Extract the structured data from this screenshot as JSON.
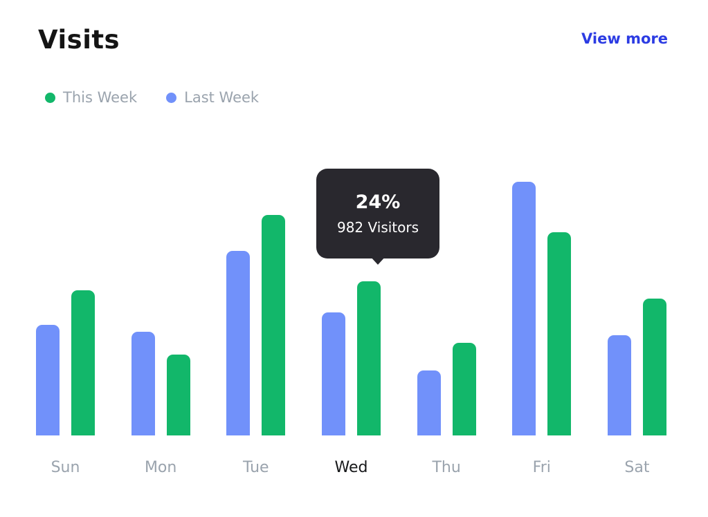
{
  "header": {
    "title": "Visits",
    "view_more_label": "View more"
  },
  "legend": [
    {
      "label": "This Week",
      "color": "#12b76a"
    },
    {
      "label": "Last Week",
      "color": "#7191fa"
    }
  ],
  "tooltip": {
    "percent": "24%",
    "visitors": "982 Visitors"
  },
  "colors": {
    "this_week": "#12b76a",
    "last_week": "#7191fa",
    "tooltip_bg": "#29282e",
    "link": "#2c3ce3",
    "label": "#9aa3ad",
    "label_active": "#17181a"
  },
  "chart_data": {
    "type": "bar",
    "title": "Visits",
    "categories": [
      "Sun",
      "Mon",
      "Tue",
      "Wed",
      "Thu",
      "Fri",
      "Sat"
    ],
    "series": [
      {
        "name": "Last Week",
        "color": "#7191fa",
        "values": [
          705,
          660,
          1175,
          785,
          415,
          1615,
          640
        ]
      },
      {
        "name": "This Week",
        "color": "#12b76a",
        "values": [
          925,
          515,
          1405,
          982,
          590,
          1295,
          870
        ]
      }
    ],
    "highlighted_category": "Wed",
    "tooltip": {
      "category": "Wed",
      "series": "This Week",
      "percent": "24%",
      "label": "982 Visitors"
    },
    "xlabel": "",
    "ylabel": "",
    "ylim": [
      0,
      1700
    ],
    "grid": false,
    "legend_position": "top-left"
  }
}
